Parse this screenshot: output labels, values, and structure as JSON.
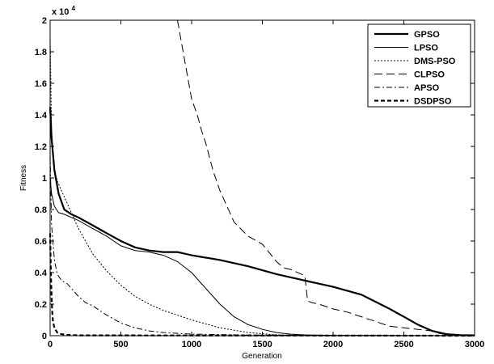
{
  "chart_data": {
    "type": "line",
    "title": "",
    "xlabel": "Generation",
    "ylabel": "Fitness",
    "y_exponent_label": "x 10",
    "y_exponent_power": "4",
    "xlim": [
      0,
      3000
    ],
    "ylim": [
      0,
      2
    ],
    "x_ticks": [
      "0",
      "500",
      "1000",
      "1500",
      "2000",
      "2500",
      "3000"
    ],
    "y_ticks": [
      "0",
      "0.2",
      "0.4",
      "0.6",
      "0.8",
      "1",
      "1.2",
      "1.4",
      "1.6",
      "1.8",
      "2"
    ],
    "grid": false,
    "legend_position": "top-right",
    "series": [
      {
        "name": "GPSO",
        "style": "thick-solid",
        "x": [
          0,
          10,
          30,
          60,
          100,
          150,
          200,
          300,
          400,
          500,
          600,
          700,
          800,
          900,
          1000,
          1200,
          1400,
          1600,
          1800,
          2000,
          2200,
          2400,
          2500,
          2600,
          2700,
          2800,
          2900,
          3000
        ],
        "y": [
          1.45,
          1.25,
          1.05,
          0.9,
          0.8,
          0.77,
          0.75,
          0.7,
          0.65,
          0.6,
          0.56,
          0.54,
          0.53,
          0.53,
          0.51,
          0.48,
          0.44,
          0.39,
          0.35,
          0.31,
          0.26,
          0.17,
          0.12,
          0.07,
          0.03,
          0.01,
          0.003,
          0.002
        ]
      },
      {
        "name": "LPSO",
        "style": "solid",
        "x": [
          0,
          10,
          30,
          60,
          100,
          150,
          200,
          300,
          400,
          500,
          600,
          700,
          800,
          900,
          1000,
          1100,
          1200,
          1300,
          1400,
          1500,
          1600,
          1700,
          1800,
          2000,
          2500,
          3000
        ],
        "y": [
          1.0,
          0.9,
          0.82,
          0.78,
          0.77,
          0.75,
          0.73,
          0.68,
          0.63,
          0.57,
          0.54,
          0.53,
          0.51,
          0.47,
          0.4,
          0.3,
          0.2,
          0.12,
          0.07,
          0.04,
          0.02,
          0.01,
          0.005,
          0.002,
          0.001,
          0.0
        ]
      },
      {
        "name": "DMS-PSO",
        "style": "dotted",
        "x": [
          0,
          10,
          30,
          50,
          100,
          150,
          200,
          250,
          300,
          400,
          500,
          600,
          700,
          800,
          900,
          1000,
          1200,
          1400,
          1600,
          1800,
          2000,
          3000
        ],
        "y": [
          1.9,
          1.3,
          1.05,
          0.98,
          0.88,
          0.78,
          0.68,
          0.6,
          0.52,
          0.41,
          0.32,
          0.25,
          0.2,
          0.16,
          0.13,
          0.1,
          0.05,
          0.02,
          0.005,
          0.001,
          0.0,
          0.0
        ]
      },
      {
        "name": "CLPSO",
        "style": "long-dash",
        "x": [
          900,
          960,
          1000,
          1040,
          1070,
          1100,
          1150,
          1200,
          1250,
          1300,
          1400,
          1500,
          1600,
          1650,
          1700,
          1800,
          1820,
          1850,
          1900,
          2000,
          2100,
          2200,
          2300,
          2400,
          2500,
          2600,
          2700,
          2750,
          2800,
          2900,
          3000
        ],
        "y": [
          2.0,
          1.7,
          1.5,
          1.4,
          1.3,
          1.22,
          1.05,
          0.92,
          0.82,
          0.72,
          0.63,
          0.58,
          0.47,
          0.43,
          0.42,
          0.38,
          0.22,
          0.21,
          0.2,
          0.17,
          0.15,
          0.12,
          0.09,
          0.06,
          0.05,
          0.04,
          0.03,
          0.015,
          0.01,
          0.005,
          0.002
        ]
      },
      {
        "name": "APSO",
        "style": "dash-dot",
        "x": [
          0,
          10,
          30,
          50,
          80,
          120,
          150,
          200,
          250,
          300,
          400,
          500,
          600,
          700,
          800,
          1000,
          1500,
          3000
        ],
        "y": [
          1.15,
          0.7,
          0.48,
          0.39,
          0.35,
          0.33,
          0.3,
          0.25,
          0.21,
          0.19,
          0.13,
          0.08,
          0.05,
          0.03,
          0.02,
          0.01,
          0.003,
          0.0
        ]
      },
      {
        "name": "DSDPSO",
        "style": "thick-dash",
        "x": [
          0,
          5,
          10,
          15,
          20,
          30,
          50,
          80,
          120,
          200,
          3000
        ],
        "y": [
          0.65,
          0.4,
          0.25,
          0.15,
          0.09,
          0.05,
          0.02,
          0.01,
          0.005,
          0.002,
          0.0
        ]
      }
    ]
  }
}
